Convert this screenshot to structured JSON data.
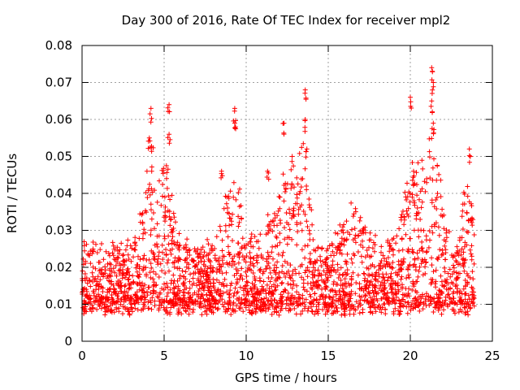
{
  "chart_data": {
    "type": "scatter",
    "title": "Day 300 of 2016, Rate Of TEC Index for receiver mpl2",
    "xlabel": "GPS time / hours",
    "ylabel": "ROTI / TECUs",
    "xlim": [
      0,
      25
    ],
    "ylim": [
      0,
      0.08
    ],
    "xticks": [
      0,
      5,
      10,
      15,
      20,
      25
    ],
    "xtick_labels": [
      "0",
      "5",
      "10",
      "15",
      "20",
      "25"
    ],
    "yticks": [
      0,
      0.01,
      0.02,
      0.03,
      0.04,
      0.05,
      0.06,
      0.07,
      0.08
    ],
    "ytick_labels": [
      "0",
      "0.01",
      "0.02",
      "0.03",
      "0.04",
      "0.05",
      "0.06",
      "0.07",
      "0.08"
    ],
    "grid": true,
    "marker": "+",
    "marker_color": "#ff0000",
    "series": [
      {
        "name": "ROTI",
        "description": "dense scatter of ROTI samples approx every 30 s; baseline 0.005-0.03 TECU/s with spikes",
        "baseline_range": [
          0.005,
          0.03
        ],
        "peaks": [
          {
            "x": 4.2,
            "y": 0.063
          },
          {
            "x": 4.1,
            "y": 0.055
          },
          {
            "x": 5.3,
            "y": 0.064
          },
          {
            "x": 5.3,
            "y": 0.056
          },
          {
            "x": 8.5,
            "y": 0.046
          },
          {
            "x": 9.3,
            "y": 0.063
          },
          {
            "x": 9.3,
            "y": 0.059
          },
          {
            "x": 11.3,
            "y": 0.046
          },
          {
            "x": 12.3,
            "y": 0.059
          },
          {
            "x": 12.8,
            "y": 0.05
          },
          {
            "x": 13.6,
            "y": 0.068
          },
          {
            "x": 13.6,
            "y": 0.06
          },
          {
            "x": 13.7,
            "y": 0.052
          },
          {
            "x": 20.0,
            "y": 0.066
          },
          {
            "x": 20.2,
            "y": 0.046
          },
          {
            "x": 21.3,
            "y": 0.074
          },
          {
            "x": 21.4,
            "y": 0.07
          },
          {
            "x": 21.3,
            "y": 0.065
          },
          {
            "x": 21.4,
            "y": 0.059
          },
          {
            "x": 23.6,
            "y": 0.052
          },
          {
            "x": 23.7,
            "y": 0.033
          }
        ]
      }
    ]
  }
}
